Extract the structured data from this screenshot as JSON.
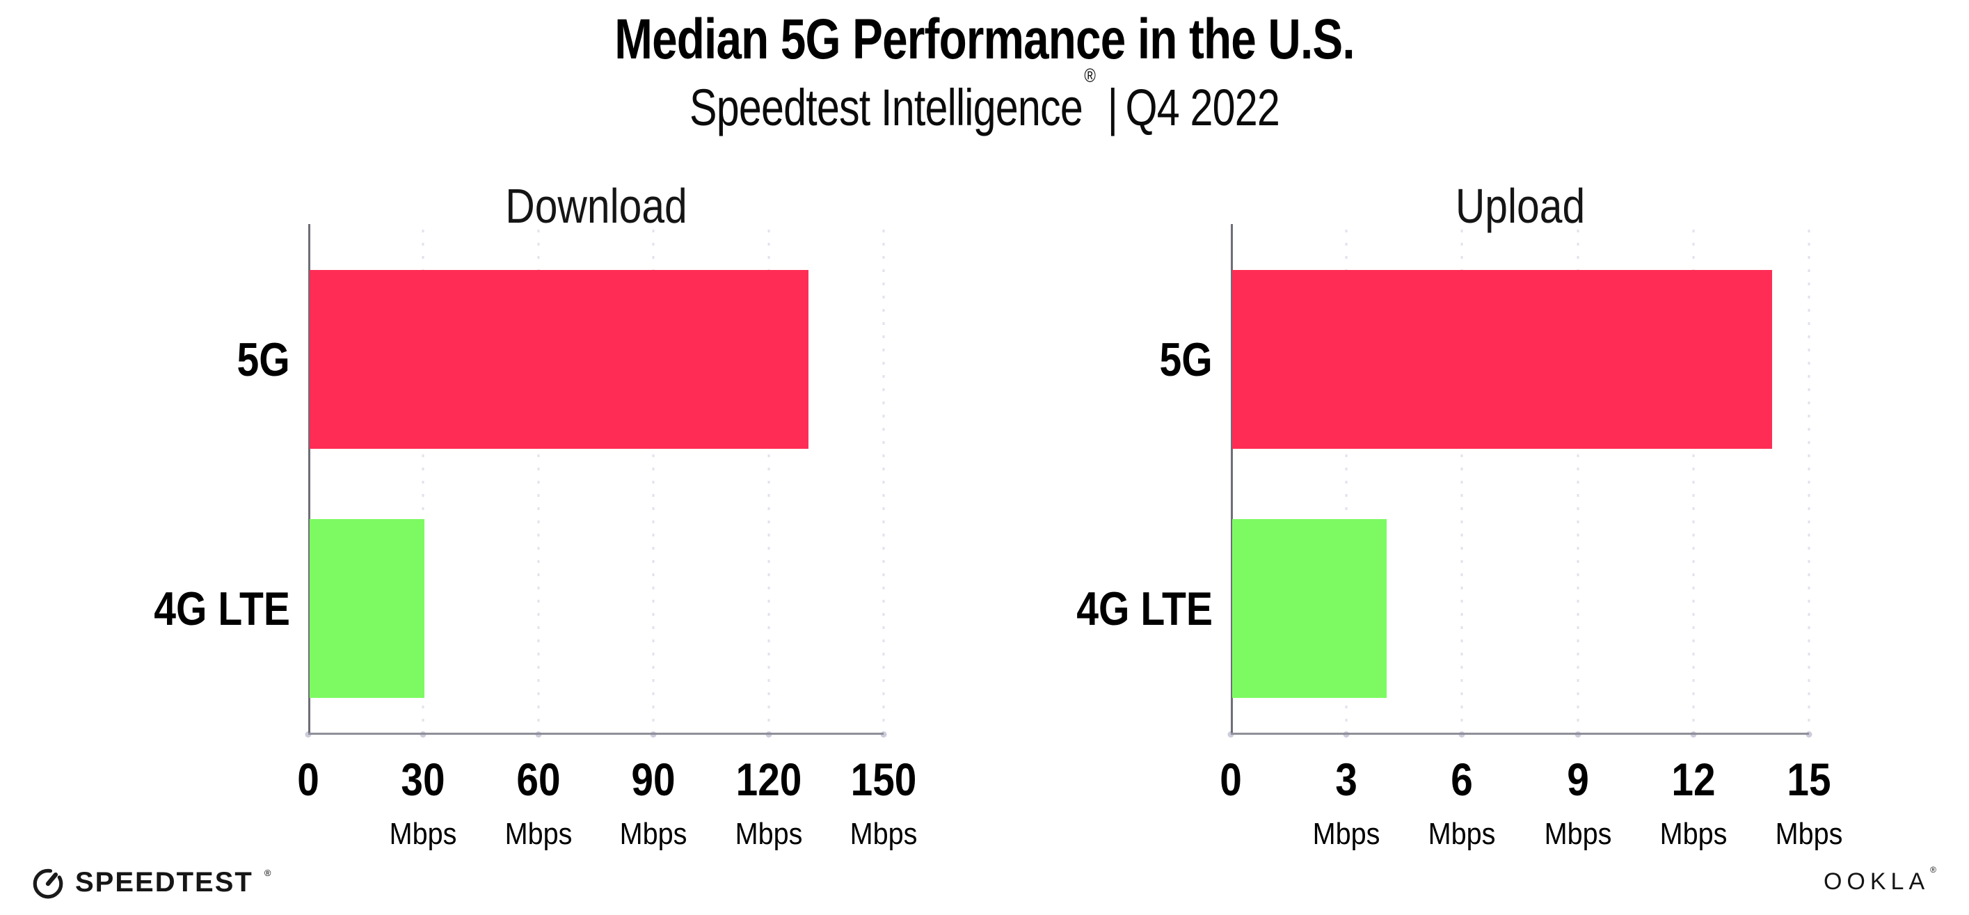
{
  "header": {
    "title": "Median 5G Performance in the U.S.",
    "subtitle_brand": "Speedtest Intelligence",
    "subtitle_registered": "®",
    "subtitle_separator": "|",
    "subtitle_period": "Q4 2022"
  },
  "chart_data": {
    "type": "bar",
    "orientation": "horizontal",
    "title": "Median 5G Performance in the U.S.",
    "subtitle": "Speedtest Intelligence® | Q4 2022",
    "grid": "dotted-vertical",
    "legend": "none",
    "panels": [
      {
        "title": "Download",
        "categories": [
          "5G",
          "4G LTE"
        ],
        "values": [
          130,
          30
        ],
        "unit": "Mbps",
        "xlim": [
          0,
          150
        ],
        "xticks": [
          0,
          30,
          60,
          90,
          120,
          150
        ]
      },
      {
        "title": "Upload",
        "categories": [
          "5G",
          "4G LTE"
        ],
        "values": [
          14,
          4
        ],
        "unit": "Mbps",
        "xlim": [
          0,
          15
        ],
        "xticks": [
          0,
          3,
          6,
          9,
          12,
          15
        ]
      }
    ],
    "colors": {
      "5G": "#ff2d55",
      "4G LTE": "#7dfa62"
    }
  },
  "style": {
    "bar_5g_color": "#ff2d55",
    "bar_4g_color": "#7dfa62",
    "gridline_color": "#e2e2ee",
    "baseline_color": "#8f8f99",
    "yaxis_color": "#6e6e78",
    "text_color": "#000000"
  },
  "footer": {
    "speedtest_label": "SPEEDTEST",
    "speedtest_mark": "®",
    "speedtest_icon": "gauge-needle-icon",
    "ookla_label": "OOKLA",
    "ookla_mark": "®"
  }
}
